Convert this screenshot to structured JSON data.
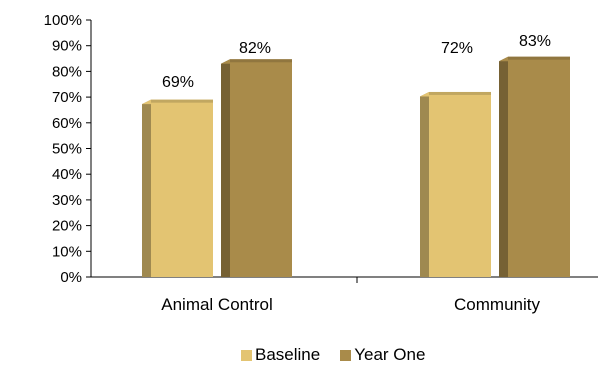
{
  "chart_data": {
    "type": "bar",
    "categories": [
      "Animal Control",
      "Community"
    ],
    "series": [
      {
        "name": "Baseline",
        "values": [
          69,
          72
        ],
        "labels": [
          "69%",
          "72%"
        ],
        "color": "#E3C472"
      },
      {
        "name": "Year One",
        "values": [
          82,
          83
        ],
        "labels": [
          "82%",
          "83%"
        ],
        "color": "#A98B4A"
      }
    ],
    "y_ticks": [
      "0%",
      "10%",
      "20%",
      "30%",
      "40%",
      "50%",
      "60%",
      "70%",
      "80%",
      "90%",
      "100%"
    ],
    "ylim": [
      0,
      100
    ],
    "style": "3d-bar",
    "legend_position": "bottom"
  }
}
